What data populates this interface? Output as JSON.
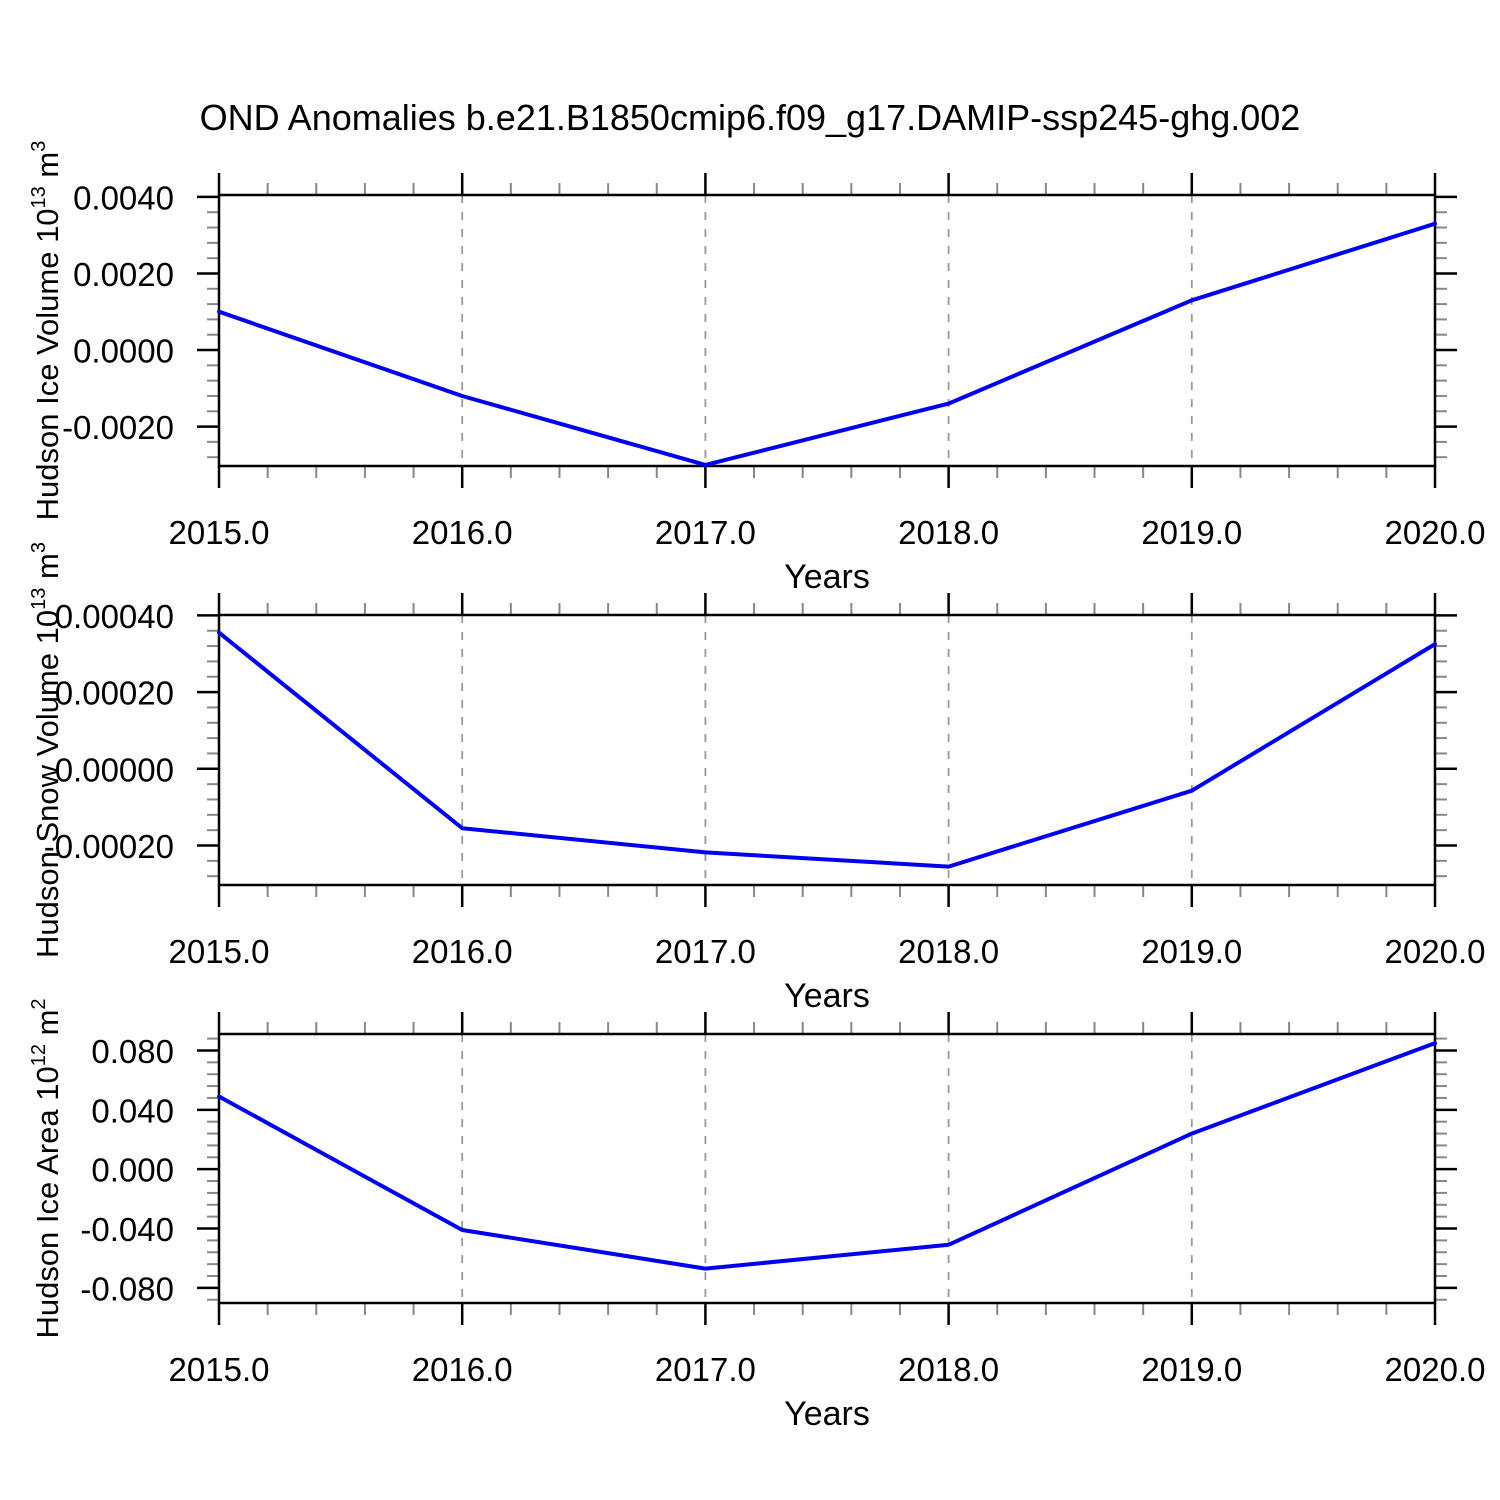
{
  "title": "OND Anomalies b.e21.B1850cmip6.f09_g17.DAMIP-ssp245-ghg.002",
  "colors": {
    "line": "#0000EE",
    "grid": "#999999",
    "axis": "#000000",
    "minor_tick": "#888888",
    "background": "#FFFFFF"
  },
  "chart_data": [
    {
      "type": "line",
      "xlabel": "Years",
      "ylabel_parts": [
        {
          "text": "Hudson Ice Volume 10"
        },
        {
          "text": "13",
          "sup": true
        },
        {
          "text": " m"
        },
        {
          "text": "3",
          "sup": true
        }
      ],
      "x": [
        2015,
        2016,
        2017,
        2018,
        2019,
        2020
      ],
      "values": [
        0.001,
        -0.0012,
        -0.003,
        -0.0014,
        0.0013,
        0.0033
      ],
      "xlim": [
        2015,
        2020
      ],
      "ylim": [
        -0.00303,
        0.00405
      ],
      "xticks": {
        "major": [
          2015,
          2016,
          2017,
          2018,
          2019,
          2020
        ],
        "labels": [
          "2015.0",
          "2016.0",
          "2017.0",
          "2018.0",
          "2019.0",
          "2020.0"
        ],
        "minor_step": 0.2
      },
      "yticks": {
        "major": [
          0.004,
          0.002,
          0.0,
          -0.002
        ],
        "labels": [
          "0.0040",
          "0.0020",
          "0.0000",
          "-0.0020"
        ],
        "minor_step": 0.0004
      },
      "gridlines_x": [
        2016,
        2017,
        2018,
        2019
      ],
      "grid_style": "dashed",
      "legend": "none"
    },
    {
      "type": "line",
      "xlabel": "Years",
      "ylabel_parts": [
        {
          "text": "Hudson Snow Volume 10"
        },
        {
          "text": "13",
          "sup": true
        },
        {
          "text": " m"
        },
        {
          "text": "3",
          "sup": true
        }
      ],
      "x": [
        2015,
        2016,
        2017,
        2018,
        2019,
        2020
      ],
      "values": [
        0.000355,
        -0.000155,
        -0.000218,
        -0.000255,
        -5.7e-05,
        0.000325
      ],
      "xlim": [
        2015,
        2020
      ],
      "ylim": [
        -0.000303,
        0.000401
      ],
      "xticks": {
        "major": [
          2015,
          2016,
          2017,
          2018,
          2019,
          2020
        ],
        "labels": [
          "2015.0",
          "2016.0",
          "2017.0",
          "2018.0",
          "2019.0",
          "2020.0"
        ],
        "minor_step": 0.2
      },
      "yticks": {
        "major": [
          0.0004,
          0.0002,
          0.0,
          -0.0002
        ],
        "labels": [
          "0.00040",
          "0.00020",
          "0.00000",
          "-0.00020"
        ],
        "minor_step": 4e-05
      },
      "gridlines_x": [
        2016,
        2017,
        2018,
        2019
      ],
      "grid_style": "dashed",
      "legend": "none"
    },
    {
      "type": "line",
      "xlabel": "Years",
      "ylabel_parts": [
        {
          "text": "Hudson Ice Area 10"
        },
        {
          "text": "12",
          "sup": true
        },
        {
          "text": " m"
        },
        {
          "text": "2",
          "sup": true
        }
      ],
      "x": [
        2015,
        2016,
        2017,
        2018,
        2019,
        2020
      ],
      "values": [
        0.049,
        -0.041,
        -0.067,
        -0.051,
        0.024,
        0.085
      ],
      "xlim": [
        2015,
        2020
      ],
      "ylim": [
        -0.0902,
        0.0911
      ],
      "xticks": {
        "major": [
          2015,
          2016,
          2017,
          2018,
          2019,
          2020
        ],
        "labels": [
          "2015.0",
          "2016.0",
          "2017.0",
          "2018.0",
          "2019.0",
          "2020.0"
        ],
        "minor_step": 0.2
      },
      "yticks": {
        "major": [
          0.08,
          0.04,
          0.0,
          -0.04,
          -0.08
        ],
        "labels": [
          "0.080",
          "0.040",
          "0.000",
          "-0.040",
          "-0.080"
        ],
        "minor_step": 0.008
      },
      "gridlines_x": [
        2016,
        2017,
        2018,
        2019
      ],
      "grid_style": "dashed",
      "legend": "none"
    }
  ]
}
